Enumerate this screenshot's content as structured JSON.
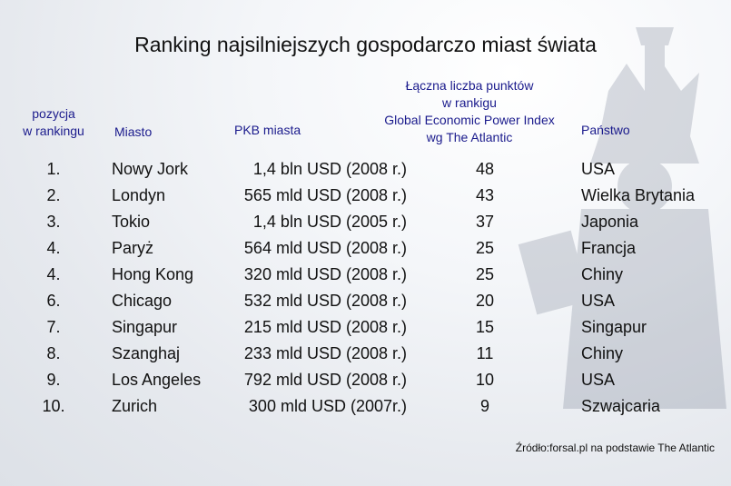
{
  "title": "Ranking najsilniejszych gospodarczo miast świata",
  "headers": {
    "position": [
      "pozycja",
      "w rankingu"
    ],
    "city": "Miasto",
    "gdp": "PKB miasta",
    "points": [
      "Łączna liczba punktów",
      "w rankigu",
      "Global Economic Power Index",
      "wg The Atlantic"
    ],
    "country": "Państwo"
  },
  "rows": [
    {
      "pos": "1.",
      "city": "Nowy Jork",
      "gdp": "1,4 bln USD (2008 r.)",
      "points": "48",
      "country": "USA"
    },
    {
      "pos": "2.",
      "city": "Londyn",
      "gdp": "565 mld USD (2008 r.)",
      "points": "43",
      "country": "Wielka Brytania"
    },
    {
      "pos": "3.",
      "city": "Tokio",
      "gdp": "1,4 bln USD (2005 r.)",
      "points": "37",
      "country": "Japonia"
    },
    {
      "pos": "4.",
      "city": "Paryż",
      "gdp": "564 mld USD (2008 r.)",
      "points": "25",
      "country": "Francja"
    },
    {
      "pos": "4.",
      "city": "Hong Kong",
      "gdp": "320 mld USD (2008 r.)",
      "points": "25",
      "country": "Chiny"
    },
    {
      "pos": "6.",
      "city": "Chicago",
      "gdp": "532 mld USD (2008 r.)",
      "points": "20",
      "country": "USA"
    },
    {
      "pos": "7.",
      "city": "Singapur",
      "gdp": "215 mld USD (2008 r.)",
      "points": "15",
      "country": "Singapur"
    },
    {
      "pos": "8.",
      "city": "Szanghaj",
      "gdp": "233 mld USD (2008 r.)",
      "points": "11",
      "country": "Chiny"
    },
    {
      "pos": "9.",
      "city": "Los Angeles",
      "gdp": "792 mld USD (2008 r.)",
      "points": "10",
      "country": "USA"
    },
    {
      "pos": "10.",
      "city": "Zurich",
      "gdp": "300 mld USD (2007r.)",
      "points": "9",
      "country": "Szwajcaria"
    }
  ],
  "source": "Źródło:forsal.pl na podstawie The Atlantic",
  "colors": {
    "header_text": "#1a1a8c",
    "body_text": "#111111"
  }
}
